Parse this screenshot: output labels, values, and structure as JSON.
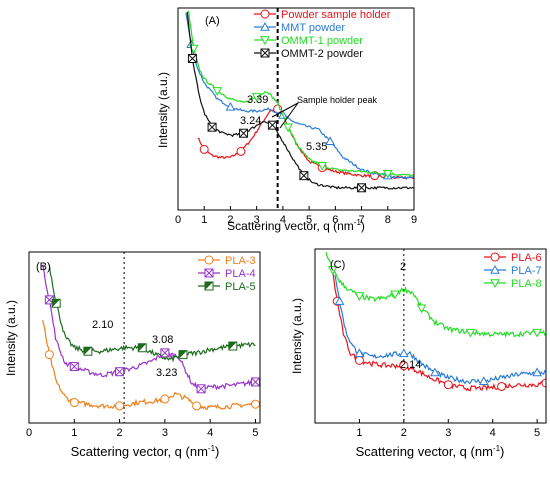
{
  "chart_data": [
    {
      "panel_label": "(A)",
      "type": "line",
      "xlabel": "Scattering vector, q (nm",
      "xlabel_sup": "-1",
      "xlabel_tail": ")",
      "ylabel": "Intensity (a.u.)",
      "xlim": [
        0,
        9
      ],
      "ylim": [
        0,
        1
      ],
      "y_log": true,
      "x_ticks": [
        "0",
        "1",
        "2",
        "3",
        "4",
        "5",
        "6",
        "7",
        "8",
        "9"
      ],
      "legend_position": "top-right",
      "series": [
        {
          "name": "Powder sample holder",
          "color": "#e8141a",
          "marker": "circle",
          "x": [
            0.75,
            1.0,
            1.3,
            1.6,
            2.0,
            2.4,
            2.8,
            3.2,
            3.5,
            3.8,
            4.1,
            4.5,
            5.0,
            5.5,
            6.0,
            6.5,
            7.0,
            7.5,
            8.0,
            8.5,
            9.0
          ],
          "y": [
            0.36,
            0.3,
            0.27,
            0.26,
            0.26,
            0.29,
            0.35,
            0.43,
            0.49,
            0.5,
            0.44,
            0.33,
            0.24,
            0.21,
            0.19,
            0.18,
            0.17,
            0.17,
            0.16,
            0.16,
            0.16
          ]
        },
        {
          "name": "MMT powder",
          "color": "#2a7bd6",
          "marker": "triangle",
          "x": [
            0.3,
            0.5,
            0.75,
            1.0,
            1.5,
            2.0,
            2.5,
            3.0,
            3.5,
            4.0,
            4.5,
            5.0,
            5.35,
            5.8,
            6.3,
            7.0,
            7.5,
            8.0,
            8.5,
            9.0
          ],
          "y": [
            0.98,
            0.82,
            0.7,
            0.63,
            0.55,
            0.51,
            0.49,
            0.49,
            0.5,
            0.47,
            0.43,
            0.41,
            0.4,
            0.34,
            0.26,
            0.2,
            0.18,
            0.17,
            0.16,
            0.16
          ]
        },
        {
          "name": "OMMT-1 powder",
          "color": "#22dd22",
          "marker": "triangle-down",
          "x": [
            0.4,
            0.6,
            0.8,
            1.0,
            1.5,
            2.0,
            2.5,
            3.0,
            3.39,
            3.8,
            4.2,
            4.6,
            5.0,
            5.5,
            6.0,
            7.0,
            8.0,
            9.0
          ],
          "y": [
            0.98,
            0.8,
            0.7,
            0.65,
            0.59,
            0.55,
            0.53,
            0.56,
            0.59,
            0.53,
            0.41,
            0.31,
            0.25,
            0.22,
            0.2,
            0.19,
            0.18,
            0.17
          ]
        },
        {
          "name": "OMMT-2 powder",
          "color": "#111111",
          "marker": "square-x",
          "x": [
            0.35,
            0.55,
            0.8,
            1.0,
            1.3,
            1.7,
            2.1,
            2.5,
            2.9,
            3.24,
            3.6,
            4.0,
            4.4,
            4.8,
            5.2,
            6.0,
            7.0,
            8.0,
            9.0
          ],
          "y": [
            0.98,
            0.75,
            0.57,
            0.48,
            0.41,
            0.38,
            0.37,
            0.38,
            0.41,
            0.44,
            0.42,
            0.34,
            0.25,
            0.17,
            0.13,
            0.11,
            0.11,
            0.11,
            0.11
          ]
        }
      ],
      "annotations": [
        {
          "text": "3.39",
          "x": 3.39,
          "y": 0.64
        },
        {
          "text": "3.24",
          "x": 3.24,
          "y": 0.49
        },
        {
          "text": "5.35",
          "x": 5.35,
          "y": 0.43
        },
        {
          "text": "Sample holder peak",
          "x": 5.0,
          "y": 0.76
        }
      ],
      "dashed_line_x": 3.8
    },
    {
      "panel_label": "(B)",
      "type": "line",
      "xlabel": "Scattering vector, q (nm",
      "xlabel_sup": "-1",
      "xlabel_tail": ")",
      "ylabel": "Intensity (a.u.)",
      "xlim": [
        0,
        5.1
      ],
      "ylim": [
        0,
        1
      ],
      "x_ticks": [
        "0",
        "1",
        "2",
        "3",
        "4",
        "5"
      ],
      "legend_position": "top-right",
      "series": [
        {
          "name": "PLA-3",
          "color": "#f07f1a",
          "marker": "circle",
          "x": [
            0.3,
            0.45,
            0.6,
            0.8,
            1.0,
            1.3,
            1.6,
            2.0,
            2.4,
            2.8,
            3.0,
            3.23,
            3.5,
            3.7,
            4.0,
            4.5,
            5.0
          ],
          "y": [
            0.6,
            0.4,
            0.24,
            0.15,
            0.12,
            0.11,
            0.1,
            0.1,
            0.12,
            0.13,
            0.14,
            0.17,
            0.14,
            0.1,
            0.09,
            0.1,
            0.11
          ]
        },
        {
          "name": "PLA-4",
          "color": "#9933cc",
          "marker": "square-x",
          "x": [
            0.3,
            0.45,
            0.6,
            0.8,
            1.0,
            1.3,
            1.6,
            2.0,
            2.4,
            2.7,
            3.0,
            3.3,
            3.6,
            3.8,
            4.0,
            4.5,
            5.0
          ],
          "y": [
            0.92,
            0.72,
            0.48,
            0.35,
            0.33,
            0.3,
            0.28,
            0.3,
            0.33,
            0.36,
            0.41,
            0.39,
            0.23,
            0.2,
            0.21,
            0.22,
            0.24
          ]
        },
        {
          "name": "PLA-5",
          "color": "#1e6b1e",
          "marker": "triangle-flag",
          "x": [
            0.45,
            0.6,
            0.8,
            1.0,
            1.3,
            1.6,
            2.1,
            2.5,
            2.8,
            3.1,
            3.4,
            3.7,
            4.0,
            4.5,
            5.0
          ],
          "y": [
            0.92,
            0.7,
            0.5,
            0.44,
            0.42,
            0.42,
            0.44,
            0.44,
            0.4,
            0.37,
            0.4,
            0.41,
            0.43,
            0.45,
            0.46
          ]
        }
      ],
      "annotations": [
        {
          "text": "2.10",
          "x": 2.1,
          "y": 0.5
        },
        {
          "text": "3.08",
          "x": 3.08,
          "y": 0.44
        },
        {
          "text": "3.23",
          "x": 3.23,
          "y": 0.2
        }
      ],
      "dashed_line_x": 2.1
    },
    {
      "panel_label": "(C)",
      "type": "line",
      "xlabel": "Scattering vector, q (nm",
      "xlabel_sup": "-1",
      "xlabel_tail": ")",
      "ylabel": "Intensity (a.u.)",
      "xlim": [
        0,
        5.2
      ],
      "ylim": [
        0,
        1
      ],
      "x_ticks": [
        "1",
        "2",
        "3",
        "4",
        "5"
      ],
      "legend_position": "top-right",
      "series": [
        {
          "name": "PLA-6",
          "color": "#e8141a",
          "marker": "circle",
          "x": [
            0.4,
            0.5,
            0.65,
            0.8,
            1.0,
            1.3,
            1.6,
            2.0,
            2.3,
            2.6,
            3.0,
            3.4,
            3.8,
            4.2,
            4.6,
            5.0,
            5.2
          ],
          "y": [
            0.86,
            0.7,
            0.5,
            0.4,
            0.36,
            0.34,
            0.33,
            0.33,
            0.3,
            0.26,
            0.22,
            0.2,
            0.2,
            0.21,
            0.22,
            0.22,
            0.23
          ]
        },
        {
          "name": "PLA-7",
          "color": "#2a7bd6",
          "marker": "triangle",
          "x": [
            0.45,
            0.55,
            0.7,
            0.85,
            1.0,
            1.3,
            1.6,
            2.0,
            2.14,
            2.4,
            2.7,
            3.0,
            3.4,
            3.8,
            4.2,
            4.6,
            5.0,
            5.2
          ],
          "y": [
            0.86,
            0.7,
            0.52,
            0.44,
            0.4,
            0.38,
            0.39,
            0.4,
            0.4,
            0.34,
            0.29,
            0.26,
            0.24,
            0.24,
            0.26,
            0.28,
            0.29,
            0.29
          ]
        },
        {
          "name": "PLA-8",
          "color": "#22dd22",
          "marker": "triangle-down",
          "x": [
            0.25,
            0.4,
            0.6,
            0.8,
            1.0,
            1.3,
            1.6,
            1.8,
            2.0,
            2.2,
            2.4,
            2.7,
            3.0,
            3.5,
            4.0,
            4.5,
            5.0,
            5.2
          ],
          "y": [
            0.97,
            0.88,
            0.8,
            0.76,
            0.73,
            0.71,
            0.72,
            0.74,
            0.77,
            0.75,
            0.66,
            0.58,
            0.54,
            0.52,
            0.51,
            0.51,
            0.52,
            0.52
          ]
        }
      ],
      "annotations": [
        {
          "text": "2",
          "x": 2.0,
          "y": 0.84
        },
        {
          "text": "2.14",
          "x": 2.14,
          "y": 0.46
        }
      ],
      "dashed_line_x": 2.0
    }
  ]
}
